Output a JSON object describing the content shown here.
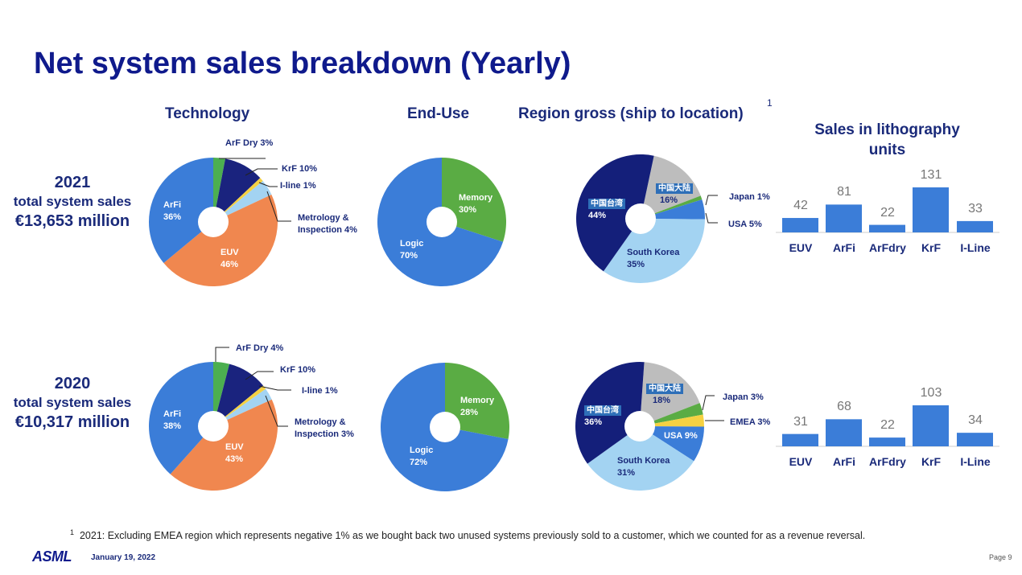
{
  "title": "Net system sales breakdown (Yearly)",
  "headers": {
    "technology": "Technology",
    "end_use": "End-Use",
    "region": "Region gross (ship to location)",
    "region_footnote_mark": "1",
    "units": "Sales in lithography units"
  },
  "years": [
    {
      "year": "2021",
      "label": "total system sales",
      "amount": "€13,653 million"
    },
    {
      "year": "2020",
      "label": "total system sales",
      "amount": "€10,317 million"
    }
  ],
  "chart_data": [
    {
      "type": "pie",
      "title": "Technology 2021",
      "slices": [
        {
          "name": "ArF Dry",
          "label": "ArF Dry 3%",
          "value": 3,
          "color": "#4caf50"
        },
        {
          "name": "KrF",
          "label": "KrF 10%",
          "value": 10,
          "color": "#1a237e"
        },
        {
          "name": "I-line",
          "label": "I-line 1%",
          "value": 1,
          "color": "#f5d142"
        },
        {
          "name": "Metrology & Inspection",
          "label": "Metrology & Inspection 4%",
          "value": 4,
          "color": "#a3d3f2"
        },
        {
          "name": "EUV",
          "label": "EUV 46%",
          "value": 46,
          "color": "#f0874f"
        },
        {
          "name": "ArFi",
          "label": "ArFi 36%",
          "value": 36,
          "color": "#3b7dd8"
        }
      ]
    },
    {
      "type": "pie",
      "title": "End-Use 2021",
      "slices": [
        {
          "name": "Memory",
          "label": "Memory 30%",
          "value": 30,
          "color": "#5aac44"
        },
        {
          "name": "Logic",
          "label": "Logic 70%",
          "value": 70,
          "color": "#3b7dd8"
        }
      ]
    },
    {
      "type": "pie",
      "title": "Region 2021",
      "slices": [
        {
          "name": "中国大陆",
          "label": "16%",
          "value": 16,
          "color": "#bdbdbd"
        },
        {
          "name": "Japan",
          "label": "Japan 1%",
          "value": 1,
          "color": "#5aac44"
        },
        {
          "name": "USA",
          "label": "USA 5%",
          "value": 5,
          "color": "#3b7dd8"
        },
        {
          "name": "South Korea",
          "label": "35%",
          "value": 35,
          "color": "#a3d3f2"
        },
        {
          "name": "中国台湾",
          "label": "44%",
          "value": 44,
          "color": "#141f7a"
        }
      ]
    },
    {
      "type": "bar",
      "title": "Sales in lithography units 2021",
      "categories": [
        "EUV",
        "ArFi",
        "ArFdry",
        "KrF",
        "I-Line"
      ],
      "values": [
        42,
        81,
        22,
        131,
        33
      ],
      "color": "#3b7dd8"
    },
    {
      "type": "pie",
      "title": "Technology 2020",
      "slices": [
        {
          "name": "ArF Dry",
          "label": "ArF Dry 4%",
          "value": 4,
          "color": "#4caf50"
        },
        {
          "name": "KrF",
          "label": "KrF 10%",
          "value": 10,
          "color": "#1a237e"
        },
        {
          "name": "I-line",
          "label": "I-line 1%",
          "value": 1,
          "color": "#f5d142"
        },
        {
          "name": "Metrology & Inspection",
          "label": "Metrology & Inspection 3%",
          "value": 3,
          "color": "#a3d3f2"
        },
        {
          "name": "EUV",
          "label": "EUV 43%",
          "value": 43,
          "color": "#f0874f"
        },
        {
          "name": "ArFi",
          "label": "ArFi 38%",
          "value": 38,
          "color": "#3b7dd8"
        }
      ]
    },
    {
      "type": "pie",
      "title": "End-Use 2020",
      "slices": [
        {
          "name": "Memory",
          "label": "Memory 28%",
          "value": 28,
          "color": "#5aac44"
        },
        {
          "name": "Logic",
          "label": "Logic 72%",
          "value": 72,
          "color": "#3b7dd8"
        }
      ]
    },
    {
      "type": "pie",
      "title": "Region 2020",
      "slices": [
        {
          "name": "中国大陆",
          "label": "18%",
          "value": 18,
          "color": "#bdbdbd"
        },
        {
          "name": "Japan",
          "label": "Japan 3%",
          "value": 3,
          "color": "#5aac44"
        },
        {
          "name": "EMEA",
          "label": "EMEA 3%",
          "value": 3,
          "color": "#f5d142"
        },
        {
          "name": "USA",
          "label": "USA 9%",
          "value": 9,
          "color": "#3b7dd8"
        },
        {
          "name": "South Korea",
          "label": "31%",
          "value": 31,
          "color": "#a3d3f2"
        },
        {
          "name": "中国台湾",
          "label": "36%",
          "value": 36,
          "color": "#141f7a"
        }
      ]
    },
    {
      "type": "bar",
      "title": "Sales in lithography units 2020",
      "categories": [
        "EUV",
        "ArFi",
        "ArFdry",
        "KrF",
        "I-Line"
      ],
      "values": [
        31,
        68,
        22,
        103,
        34
      ],
      "color": "#3b7dd8"
    }
  ],
  "labels": {
    "metrology_line1": "Metrology &",
    "inspection_4": "Inspection 4%",
    "inspection_3": "Inspection 3%",
    "arfi": "ArFi",
    "arfi_36": "36%",
    "arfi_38": "38%",
    "euv": "EUV",
    "euv_46": "46%",
    "euv_43": "43%",
    "memory": "Memory",
    "mem_30": "30%",
    "mem_28": "28%",
    "logic": "Logic",
    "logic_70": "70%",
    "logic_72": "72%",
    "south_korea": "South Korea"
  },
  "footnote": {
    "mark": "1",
    "text": "2021: Excluding EMEA region which represents negative 1% as we bought back two unused systems previously sold to a customer, which we counted for as a revenue reversal."
  },
  "footer": {
    "logo": "ASML",
    "date": "January 19, 2022",
    "page": "Page 9"
  }
}
